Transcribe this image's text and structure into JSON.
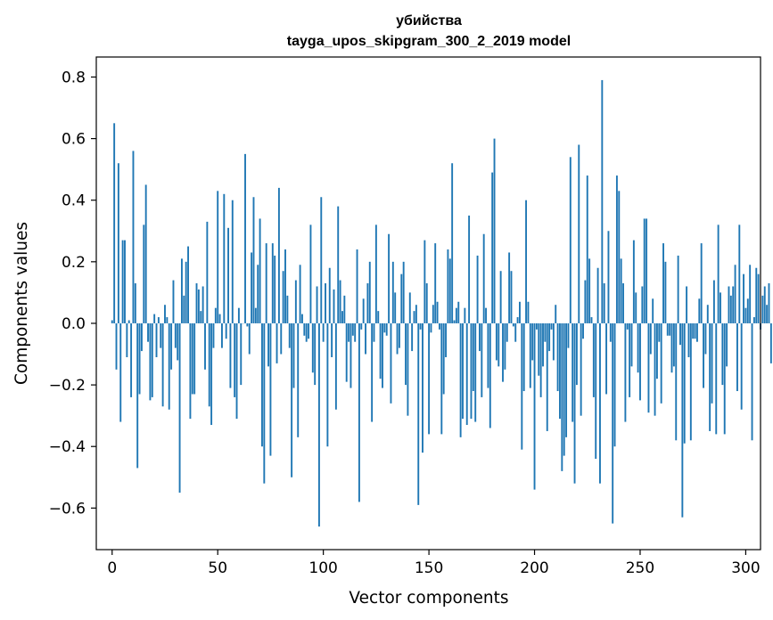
{
  "chart_data": {
    "type": "bar",
    "title": "убийства",
    "subtitle": "tayga_upos_skipgram_300_2_2019 model",
    "xlabel": "Vector components",
    "ylabel": "Components values",
    "xlim": [
      -7.5,
      307
    ],
    "ylim": [
      -0.735,
      0.865
    ],
    "xticks": [
      0,
      50,
      100,
      150,
      200,
      250,
      300
    ],
    "xtick_labels": [
      "0",
      "50",
      "100",
      "150",
      "200",
      "250",
      "300"
    ],
    "yticks": [
      -0.6,
      -0.4,
      -0.2,
      0.0,
      0.2,
      0.4,
      0.6,
      0.8
    ],
    "ytick_labels": [
      "−0.6",
      "−0.4",
      "−0.2",
      "0.0",
      "0.2",
      "0.4",
      "0.6",
      "0.8"
    ],
    "grid": false,
    "bar_color": "#1f77b4",
    "series": [
      {
        "name": "убийства",
        "values": [
          0.01,
          0.65,
          -0.15,
          0.52,
          -0.32,
          0.27,
          0.27,
          -0.11,
          0.01,
          -0.24,
          0.56,
          0.13,
          -0.47,
          -0.23,
          -0.09,
          0.32,
          0.45,
          -0.06,
          -0.25,
          -0.24,
          0.03,
          -0.11,
          0.02,
          -0.08,
          -0.27,
          0.06,
          0.02,
          -0.28,
          -0.15,
          0.14,
          -0.08,
          -0.12,
          -0.55,
          0.21,
          0.09,
          0.2,
          0.25,
          -0.31,
          -0.23,
          -0.23,
          0.13,
          0.11,
          0.04,
          0.12,
          -0.15,
          0.33,
          -0.27,
          -0.33,
          -0.08,
          0.05,
          0.43,
          0.03,
          -0.08,
          0.42,
          -0.05,
          0.31,
          -0.21,
          0.4,
          -0.24,
          -0.31,
          0.05,
          -0.2,
          0.0,
          0.55,
          -0.01,
          -0.1,
          0.23,
          0.41,
          0.05,
          0.19,
          0.34,
          -0.4,
          -0.52,
          0.26,
          -0.14,
          -0.43,
          0.26,
          0.22,
          -0.13,
          0.44,
          -0.1,
          0.17,
          0.24,
          0.09,
          -0.08,
          -0.5,
          -0.21,
          0.14,
          -0.37,
          0.19,
          0.03,
          -0.04,
          -0.06,
          -0.05,
          0.32,
          -0.16,
          -0.2,
          0.12,
          -0.66,
          0.41,
          -0.06,
          0.13,
          -0.4,
          0.18,
          -0.11,
          0.11,
          -0.28,
          0.38,
          0.14,
          0.04,
          0.09,
          -0.19,
          -0.06,
          -0.21,
          -0.04,
          -0.06,
          0.24,
          -0.58,
          -0.02,
          0.08,
          -0.1,
          0.13,
          0.2,
          -0.32,
          -0.06,
          0.32,
          0.04,
          -0.18,
          -0.21,
          -0.03,
          -0.04,
          0.29,
          -0.26,
          0.2,
          0.1,
          -0.1,
          -0.08,
          0.16,
          0.2,
          -0.2,
          -0.3,
          0.1,
          -0.09,
          0.04,
          0.06,
          -0.59,
          -0.02,
          -0.42,
          0.27,
          0.13,
          -0.36,
          -0.03,
          0.06,
          0.26,
          0.07,
          -0.02,
          -0.36,
          -0.23,
          -0.11,
          0.24,
          0.21,
          0.52,
          0.01,
          0.05,
          0.07,
          -0.37,
          -0.31,
          0.05,
          -0.33,
          0.35,
          -0.31,
          -0.22,
          -0.32,
          0.22,
          -0.09,
          -0.24,
          0.29,
          0.05,
          -0.21,
          -0.34,
          0.49,
          0.6,
          -0.12,
          -0.14,
          0.17,
          -0.19,
          -0.15,
          -0.06,
          0.23,
          0.17,
          -0.01,
          -0.06,
          0.02,
          0.07,
          -0.41,
          -0.22,
          0.4,
          0.07,
          -0.21,
          -0.12,
          -0.54,
          -0.02,
          -0.17,
          -0.24,
          -0.14,
          -0.06,
          -0.35,
          -0.09,
          -0.02,
          -0.12,
          0.06,
          -0.22,
          -0.31,
          -0.48,
          -0.43,
          -0.37,
          -0.08,
          0.54,
          -0.32,
          -0.52,
          -0.2,
          0.58,
          -0.3,
          -0.05,
          0.14,
          0.48,
          0.21,
          0.02,
          -0.24,
          -0.44,
          0.18,
          -0.52,
          0.79,
          0.13,
          -0.23,
          0.3,
          -0.06,
          -0.65,
          -0.4,
          0.48,
          0.43,
          0.21,
          0.13,
          -0.32,
          -0.02,
          -0.24,
          -0.14,
          0.27,
          0.1,
          -0.16,
          -0.25,
          0.12,
          0.34,
          0.34,
          -0.29,
          -0.1,
          0.08,
          -0.3,
          -0.18,
          -0.06,
          -0.26,
          0.26,
          0.2,
          -0.04,
          -0.04,
          -0.16,
          -0.14,
          -0.38,
          0.22,
          -0.07,
          -0.63,
          -0.39,
          0.12,
          -0.11,
          -0.38,
          -0.05,
          -0.05,
          -0.06,
          0.08,
          0.26,
          -0.21,
          -0.1,
          0.06,
          -0.35,
          -0.26,
          0.14,
          -0.36,
          0.32,
          0.1,
          -0.2,
          -0.36,
          -0.14,
          0.12,
          0.09,
          0.12,
          0.19,
          -0.22,
          0.32,
          -0.28,
          0.16,
          0.05,
          0.08,
          0.19,
          -0.38,
          0.02,
          0.18,
          0.16,
          -0.02,
          0.09,
          0.12,
          0.06,
          0.13,
          -0.13
        ]
      }
    ]
  }
}
